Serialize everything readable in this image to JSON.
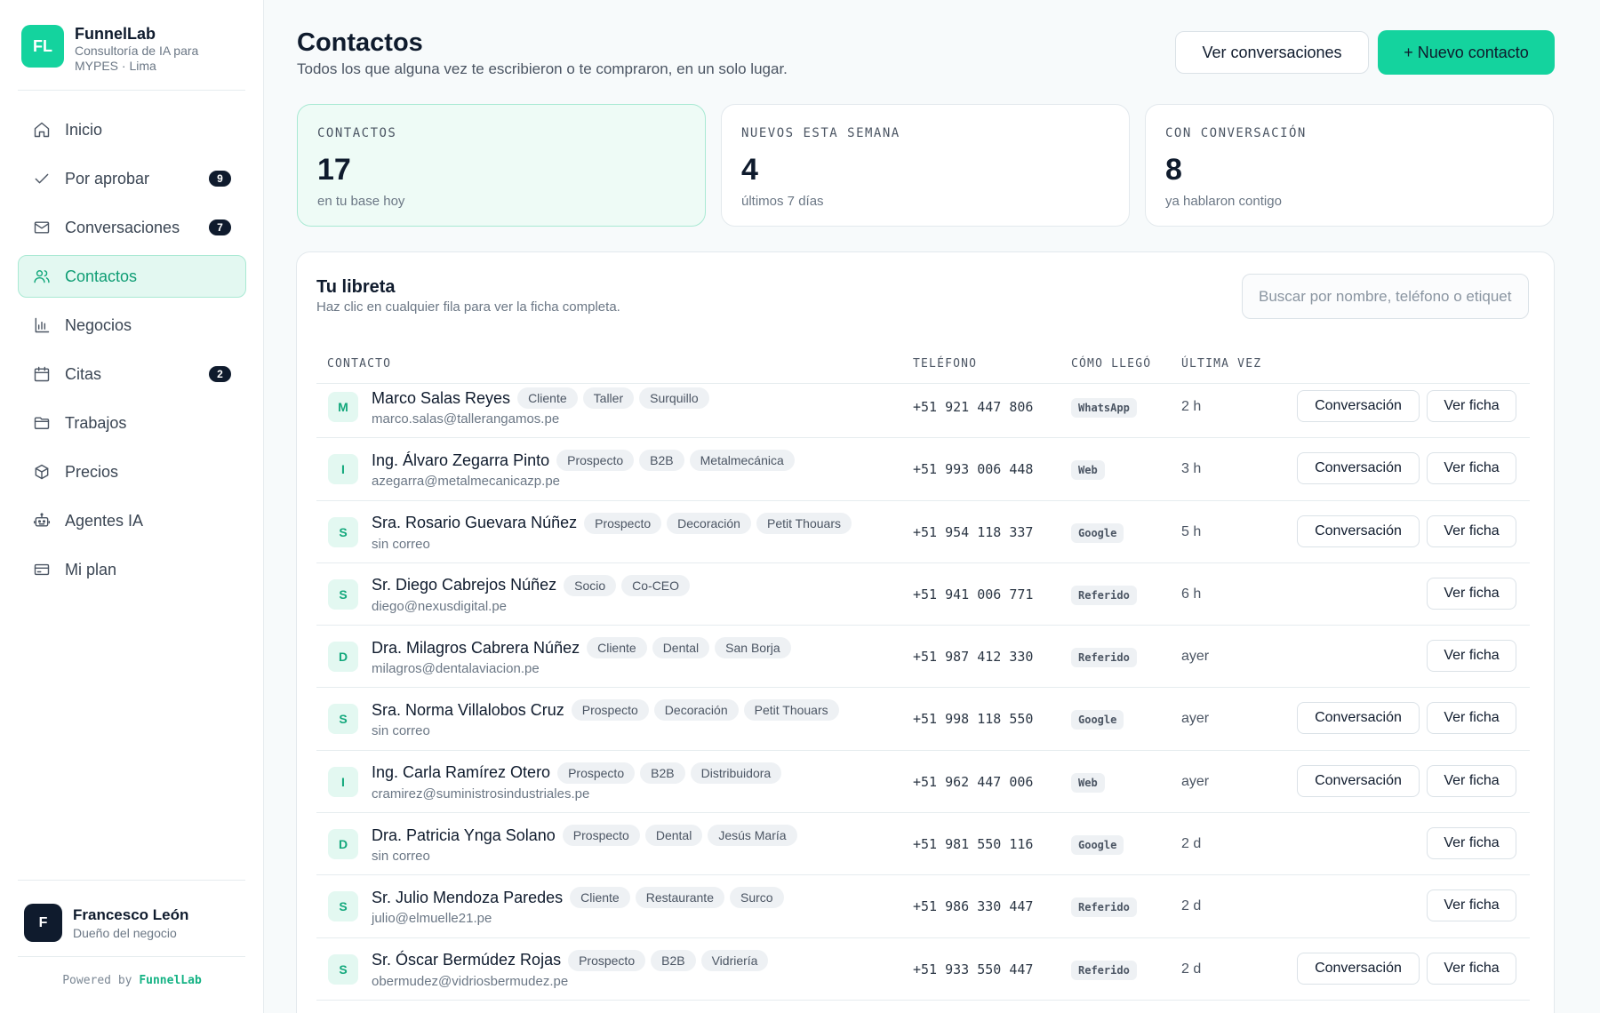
{
  "brand": {
    "logo_initials": "FL",
    "name": "FunnelLab",
    "subtitle": "Consultoría de IA para MYPES · Lima",
    "accent_color": "#14d39e"
  },
  "sidebar": {
    "items": [
      {
        "label": "Inicio",
        "icon": "home-icon",
        "badge": "",
        "active": false
      },
      {
        "label": "Por aprobar",
        "icon": "check-icon",
        "badge": "9",
        "active": false
      },
      {
        "label": "Conversaciones",
        "icon": "mail-icon",
        "badge": "7",
        "active": false
      },
      {
        "label": "Contactos",
        "icon": "users-icon",
        "badge": "",
        "active": true
      },
      {
        "label": "Negocios",
        "icon": "bar-chart-icon",
        "badge": "",
        "active": false
      },
      {
        "label": "Citas",
        "icon": "calendar-icon",
        "badge": "2",
        "active": false
      },
      {
        "label": "Trabajos",
        "icon": "folder-icon",
        "badge": "",
        "active": false
      },
      {
        "label": "Precios",
        "icon": "box-icon",
        "badge": "",
        "active": false
      },
      {
        "label": "Agentes IA",
        "icon": "robot-icon",
        "badge": "",
        "active": false
      },
      {
        "label": "Mi plan",
        "icon": "credit-card-icon",
        "badge": "",
        "active": false
      }
    ]
  },
  "user": {
    "initial": "F",
    "name": "Francesco León",
    "role": "Dueño del negocio"
  },
  "footer": {
    "powered_prefix": "Powered by",
    "powered_brand": "FunnelLab"
  },
  "header": {
    "title": "Contactos",
    "subtitle": "Todos los que alguna vez te escribieron o te compraron, en un solo lugar.",
    "view_conversations_label": "Ver conversaciones",
    "new_contact_label": "+ Nuevo contacto"
  },
  "stats": [
    {
      "label": "CONTACTOS",
      "value": "17",
      "note": "en tu base hoy",
      "highlight": true
    },
    {
      "label": "NUEVOS ESTA SEMANA",
      "value": "4",
      "note": "últimos 7 días",
      "highlight": false
    },
    {
      "label": "CON CONVERSACIÓN",
      "value": "8",
      "note": "ya hablaron contigo",
      "highlight": false
    }
  ],
  "book": {
    "title": "Tu libreta",
    "subtitle": "Haz clic en cualquier fila para ver la ficha completa.",
    "search_placeholder": "Buscar por nombre, teléfono o etiqueta",
    "columns": {
      "contact": "CONTACTO",
      "phone": "TELÉFONO",
      "source": "CÓMO LLEGÓ",
      "last": "ÚLTIMA VEZ"
    },
    "conversation_label": "Conversación",
    "view_card_label": "Ver ficha",
    "rows": [
      {
        "initial": "M",
        "name": "Marco Salas Reyes",
        "tags": [
          "Cliente",
          "Taller",
          "Surquillo"
        ],
        "email": "marco.salas@tallerangamos.pe",
        "phone": "+51 921 447 806",
        "source": "WhatsApp",
        "last": "2 h",
        "has_conversation": true
      },
      {
        "initial": "I",
        "name": "Ing. Álvaro Zegarra Pinto",
        "tags": [
          "Prospecto",
          "B2B",
          "Metalmecánica"
        ],
        "email": "azegarra@metalmecanicazp.pe",
        "phone": "+51 993 006 448",
        "source": "Web",
        "last": "3 h",
        "has_conversation": true
      },
      {
        "initial": "S",
        "name": "Sra. Rosario Guevara Núñez",
        "tags": [
          "Prospecto",
          "Decoración",
          "Petit Thouars"
        ],
        "email": "sin correo",
        "phone": "+51 954 118 337",
        "source": "Google",
        "last": "5 h",
        "has_conversation": true
      },
      {
        "initial": "S",
        "name": "Sr. Diego Cabrejos Núñez",
        "tags": [
          "Socio",
          "Co-CEO"
        ],
        "email": "diego@nexusdigital.pe",
        "phone": "+51 941 006 771",
        "source": "Referido",
        "last": "6 h",
        "has_conversation": false
      },
      {
        "initial": "D",
        "name": "Dra. Milagros Cabrera Núñez",
        "tags": [
          "Cliente",
          "Dental",
          "San Borja"
        ],
        "email": "milagros@dentalaviacion.pe",
        "phone": "+51 987 412 330",
        "source": "Referido",
        "last": "ayer",
        "has_conversation": false
      },
      {
        "initial": "S",
        "name": "Sra. Norma Villalobos Cruz",
        "tags": [
          "Prospecto",
          "Decoración",
          "Petit Thouars"
        ],
        "email": "sin correo",
        "phone": "+51 998 118 550",
        "source": "Google",
        "last": "ayer",
        "has_conversation": true
      },
      {
        "initial": "I",
        "name": "Ing. Carla Ramírez Otero",
        "tags": [
          "Prospecto",
          "B2B",
          "Distribuidora"
        ],
        "email": "cramirez@suministrosindustriales.pe",
        "phone": "+51 962 447 006",
        "source": "Web",
        "last": "ayer",
        "has_conversation": true
      },
      {
        "initial": "D",
        "name": "Dra. Patricia Ynga Solano",
        "tags": [
          "Prospecto",
          "Dental",
          "Jesús María"
        ],
        "email": "sin correo",
        "phone": "+51 981 550 116",
        "source": "Google",
        "last": "2 d",
        "has_conversation": false
      },
      {
        "initial": "S",
        "name": "Sr. Julio Mendoza Paredes",
        "tags": [
          "Cliente",
          "Restaurante",
          "Surco"
        ],
        "email": "julio@elmuelle21.pe",
        "phone": "+51 986 330 447",
        "source": "Referido",
        "last": "2 d",
        "has_conversation": false
      },
      {
        "initial": "S",
        "name": "Sr. Óscar Bermúdez Rojas",
        "tags": [
          "Prospecto",
          "B2B",
          "Vidriería"
        ],
        "email": "obermudez@vidriosbermudez.pe",
        "phone": "+51 933 550 447",
        "source": "Referido",
        "last": "2 d",
        "has_conversation": true
      }
    ]
  }
}
